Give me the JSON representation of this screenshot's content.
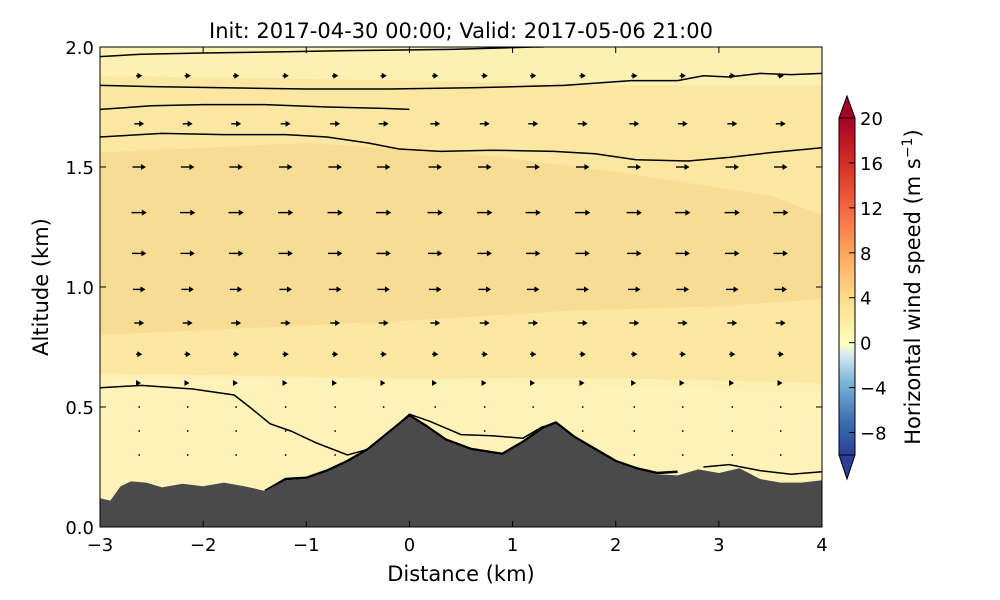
{
  "chart_data": {
    "type": "contour-quiver",
    "title": "Init: 2017-04-30 00:00; Valid: 2017-05-06 21:00",
    "xlabel": "Distance (km)",
    "ylabel": "Altitude (km)",
    "xlim": [
      -3,
      4
    ],
    "ylim": [
      0.0,
      2.0
    ],
    "x_ticks": [
      {
        "value": -3,
        "label": "−3"
      },
      {
        "value": -2,
        "label": "−2"
      },
      {
        "value": -1,
        "label": "−1"
      },
      {
        "value": 0,
        "label": "0"
      },
      {
        "value": 1,
        "label": "1"
      },
      {
        "value": 2,
        "label": "2"
      },
      {
        "value": 3,
        "label": "3"
      },
      {
        "value": 4,
        "label": "4"
      }
    ],
    "y_ticks": [
      {
        "value": 0.0,
        "label": "0.0"
      },
      {
        "value": 0.5,
        "label": "0.5"
      },
      {
        "value": 1.0,
        "label": "1.0"
      },
      {
        "value": 1.5,
        "label": "1.5"
      },
      {
        "value": 2.0,
        "label": "2.0"
      }
    ],
    "colorbar": {
      "label": "Horizontal wind speed (m s",
      "label_exponent": "−1",
      "label_close": ")",
      "min": -10,
      "max": 20,
      "extend": "both",
      "ticks": [
        {
          "value": 20,
          "label": "20"
        },
        {
          "value": 16,
          "label": "16"
        },
        {
          "value": 12,
          "label": "12"
        },
        {
          "value": 8,
          "label": "8"
        },
        {
          "value": 4,
          "label": "4"
        },
        {
          "value": 0,
          "label": "0"
        },
        {
          "value": -4,
          "label": "−4"
        },
        {
          "value": -8,
          "label": "−8"
        }
      ]
    },
    "terrain": [
      {
        "x": -3.0,
        "z": 0.12
      },
      {
        "x": -2.9,
        "z": 0.11
      },
      {
        "x": -2.8,
        "z": 0.17
      },
      {
        "x": -2.7,
        "z": 0.19
      },
      {
        "x": -2.55,
        "z": 0.185
      },
      {
        "x": -2.4,
        "z": 0.165
      },
      {
        "x": -2.2,
        "z": 0.18
      },
      {
        "x": -2.0,
        "z": 0.17
      },
      {
        "x": -1.8,
        "z": 0.185
      },
      {
        "x": -1.6,
        "z": 0.17
      },
      {
        "x": -1.4,
        "z": 0.15
      },
      {
        "x": -1.2,
        "z": 0.195
      },
      {
        "x": -1.0,
        "z": 0.2
      },
      {
        "x": -0.8,
        "z": 0.23
      },
      {
        "x": -0.6,
        "z": 0.27
      },
      {
        "x": -0.4,
        "z": 0.32
      },
      {
        "x": -0.2,
        "z": 0.39
      },
      {
        "x": 0.0,
        "z": 0.46
      },
      {
        "x": 0.15,
        "z": 0.42
      },
      {
        "x": 0.35,
        "z": 0.36
      },
      {
        "x": 0.6,
        "z": 0.32
      },
      {
        "x": 0.9,
        "z": 0.3
      },
      {
        "x": 1.1,
        "z": 0.35
      },
      {
        "x": 1.3,
        "z": 0.41
      },
      {
        "x": 1.42,
        "z": 0.43
      },
      {
        "x": 1.6,
        "z": 0.37
      },
      {
        "x": 1.8,
        "z": 0.32
      },
      {
        "x": 2.0,
        "z": 0.27
      },
      {
        "x": 2.2,
        "z": 0.24
      },
      {
        "x": 2.4,
        "z": 0.22
      },
      {
        "x": 2.6,
        "z": 0.215
      },
      {
        "x": 2.8,
        "z": 0.24
      },
      {
        "x": 3.0,
        "z": 0.225
      },
      {
        "x": 3.2,
        "z": 0.245
      },
      {
        "x": 3.4,
        "z": 0.2
      },
      {
        "x": 3.6,
        "z": 0.185
      },
      {
        "x": 3.8,
        "z": 0.185
      },
      {
        "x": 4.0,
        "z": 0.195
      }
    ],
    "contour_lines": [
      {
        "name": "top-upper",
        "points": [
          [
            -3,
            1.96
          ],
          [
            -2.6,
            1.97
          ],
          [
            -2,
            1.975
          ],
          [
            -1.2,
            1.98
          ],
          [
            -0.6,
            1.985
          ],
          [
            0.4,
            1.99
          ],
          [
            1.2,
            2.0
          ],
          [
            1.3,
            2.0
          ]
        ]
      },
      {
        "name": "top-right-arc",
        "points": [
          [
            2.15,
            1.86
          ],
          [
            2.6,
            1.86
          ],
          [
            2.85,
            1.88
          ],
          [
            3.1,
            1.875
          ],
          [
            3.4,
            1.89
          ],
          [
            3.7,
            1.885
          ],
          [
            4.0,
            1.89
          ]
        ]
      },
      {
        "name": "upper-2",
        "points": [
          [
            -3,
            1.84
          ],
          [
            -2.5,
            1.835
          ],
          [
            -1.8,
            1.83
          ],
          [
            -1.0,
            1.825
          ],
          [
            -0.2,
            1.825
          ],
          [
            0.6,
            1.83
          ],
          [
            1.5,
            1.84
          ],
          [
            2.15,
            1.86
          ]
        ]
      },
      {
        "name": "upper-3",
        "points": [
          [
            -3,
            1.74
          ],
          [
            -2.5,
            1.755
          ],
          [
            -2,
            1.76
          ],
          [
            -1.4,
            1.76
          ],
          [
            -0.8,
            1.75
          ],
          [
            -0.3,
            1.745
          ],
          [
            0,
            1.74
          ]
        ]
      },
      {
        "name": "upper-4",
        "points": [
          [
            -3,
            1.625
          ],
          [
            -2.4,
            1.64
          ],
          [
            -1.8,
            1.635
          ],
          [
            -1.2,
            1.635
          ],
          [
            -0.8,
            1.625
          ],
          [
            -0.4,
            1.6
          ],
          [
            -0.1,
            1.575
          ],
          [
            0.3,
            1.565
          ],
          [
            0.8,
            1.57
          ],
          [
            1.4,
            1.565
          ],
          [
            1.8,
            1.555
          ],
          [
            2.2,
            1.53
          ],
          [
            2.7,
            1.525
          ],
          [
            3.1,
            1.54
          ],
          [
            3.5,
            1.56
          ],
          [
            4,
            1.58
          ]
        ]
      },
      {
        "name": "lower-left",
        "points": [
          [
            -3,
            0.58
          ],
          [
            -2.6,
            0.59
          ],
          [
            -2.1,
            0.575
          ],
          [
            -1.7,
            0.55
          ],
          [
            -1.55,
            0.5
          ],
          [
            -1.35,
            0.43
          ],
          [
            -1.15,
            0.4
          ],
          [
            -0.9,
            0.35
          ],
          [
            -0.6,
            0.3
          ],
          [
            -0.35,
            0.33
          ],
          [
            -0.1,
            0.43
          ],
          [
            0.0,
            0.47
          ],
          [
            0.2,
            0.44
          ],
          [
            0.5,
            0.385
          ],
          [
            0.8,
            0.38
          ],
          [
            1.1,
            0.37
          ],
          [
            1.3,
            0.42
          ]
        ]
      },
      {
        "name": "terrain-shadow",
        "points": [
          [
            -1.4,
            0.15
          ],
          [
            -1.2,
            0.2
          ],
          [
            -1.0,
            0.205
          ],
          [
            -0.8,
            0.235
          ],
          [
            -0.6,
            0.275
          ],
          [
            -0.4,
            0.325
          ],
          [
            -0.2,
            0.395
          ],
          [
            0.0,
            0.465
          ],
          [
            0.15,
            0.425
          ],
          [
            0.35,
            0.365
          ],
          [
            0.6,
            0.325
          ],
          [
            0.9,
            0.305
          ],
          [
            1.1,
            0.355
          ],
          [
            1.3,
            0.415
          ],
          [
            1.42,
            0.435
          ],
          [
            1.6,
            0.375
          ],
          [
            1.8,
            0.325
          ],
          [
            2.0,
            0.275
          ],
          [
            2.2,
            0.245
          ],
          [
            2.4,
            0.225
          ],
          [
            2.6,
            0.23
          ]
        ]
      },
      {
        "name": "lower-right",
        "points": [
          [
            2.85,
            0.25
          ],
          [
            3.1,
            0.26
          ],
          [
            3.4,
            0.235
          ],
          [
            3.7,
            0.22
          ],
          [
            4.0,
            0.23
          ]
        ]
      }
    ],
    "quiver": {
      "columns": [
        -2.62,
        -2.15,
        -1.68,
        -1.2,
        -0.72,
        -0.25,
        0.25,
        0.73,
        1.2,
        1.68,
        2.18,
        2.65,
        3.13,
        3.6
      ],
      "rows": [
        0.3,
        0.4,
        0.5,
        0.6,
        0.72,
        0.85,
        0.99,
        1.14,
        1.31,
        1.5,
        1.68,
        1.88
      ],
      "u_by_row": [
        0.02,
        0.05,
        0.1,
        0.2,
        0.35,
        0.55,
        0.7,
        0.8,
        0.85,
        0.75,
        0.55,
        0.35
      ]
    },
    "fill_colors": {
      "light": "#fdf3b8",
      "mid": "#fbe6a2",
      "deep": "#f9dc93",
      "terrain": "#4a4a4a"
    }
  }
}
